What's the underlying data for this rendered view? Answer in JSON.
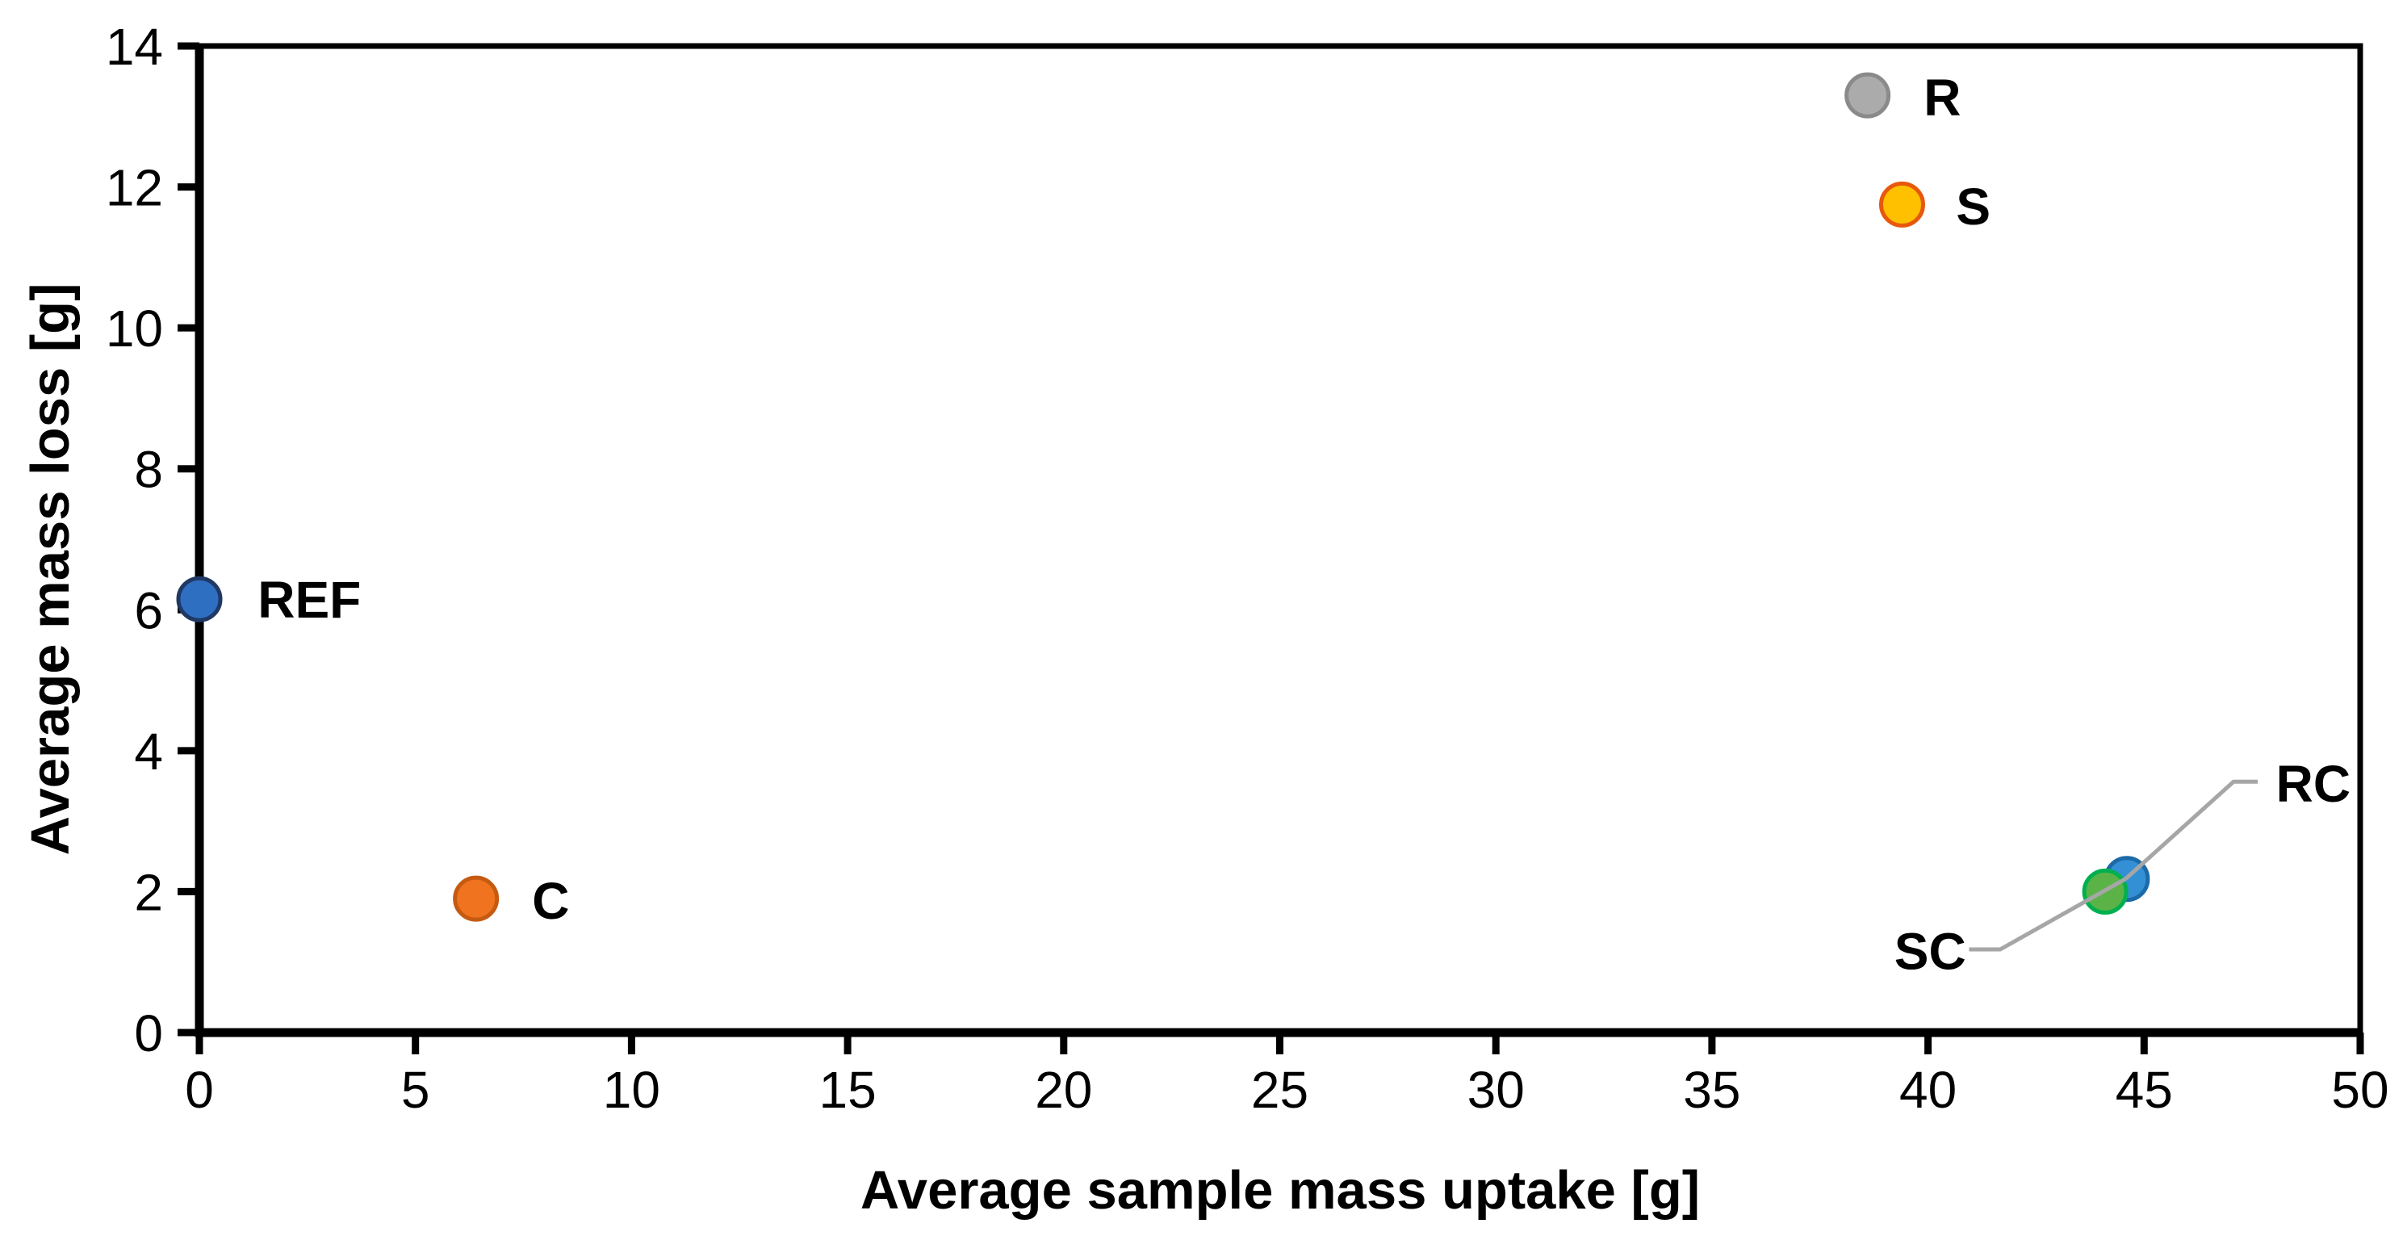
{
  "chart_data": {
    "type": "scatter",
    "title": "",
    "xlabel": "Average sample mass uptake [g]",
    "ylabel": "Average mass loss [g]",
    "xlim": [
      0,
      50
    ],
    "ylim": [
      0,
      14
    ],
    "xticks": [
      0,
      5,
      10,
      15,
      20,
      25,
      30,
      35,
      40,
      45,
      50
    ],
    "yticks": [
      0,
      2,
      4,
      6,
      8,
      10,
      12,
      14
    ],
    "grid": false,
    "legend": "none",
    "axis_color": "#000000",
    "leader_line_color": "#A6A6A6",
    "points": [
      {
        "name": "REF",
        "x": 0,
        "y": 6.15,
        "fill": "#2E6FC1",
        "stroke": "#1F3864",
        "label": {
          "x": 1.35,
          "y": 6.15,
          "anchor": "start"
        }
      },
      {
        "name": "C",
        "x": 6.4,
        "y": 1.9,
        "fill": "#F0731F",
        "stroke": "#C55A11",
        "label": {
          "x": 7.7,
          "y": 1.88,
          "anchor": "start"
        }
      },
      {
        "name": "R",
        "x": 38.6,
        "y": 13.3,
        "fill": "#ABABAB",
        "stroke": "#8A8A8A",
        "label": {
          "x": 39.9,
          "y": 13.28,
          "anchor": "start"
        }
      },
      {
        "name": "S",
        "x": 39.4,
        "y": 11.75,
        "fill": "#FFC000",
        "stroke": "#E8580C",
        "label": {
          "x": 40.65,
          "y": 11.73,
          "anchor": "start"
        }
      },
      {
        "name": "RC",
        "x": 44.6,
        "y": 2.18,
        "fill": "#3490D4",
        "stroke": "#1C6AA8",
        "label": {
          "x": 48.05,
          "y": 3.54,
          "anchor": "start"
        },
        "leader": [
          [
            44.57,
            2.18
          ],
          [
            47.07,
            3.56
          ],
          [
            47.63,
            3.56
          ]
        ]
      },
      {
        "name": "SC",
        "x": 44.1,
        "y": 2.0,
        "fill": "#5BB347",
        "stroke": "#00B050",
        "label": {
          "x": 40.88,
          "y": 1.16,
          "anchor": "end"
        },
        "leader": [
          [
            40.95,
            1.18
          ],
          [
            41.67,
            1.18
          ],
          [
            44.57,
            2.18
          ]
        ]
      }
    ]
  }
}
